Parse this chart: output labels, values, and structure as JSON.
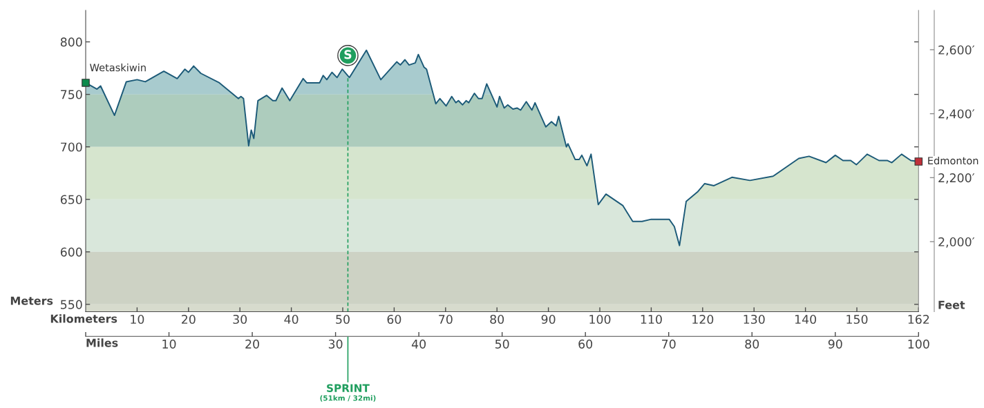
{
  "chart_data": {
    "type": "area",
    "xlabel": "Kilometers",
    "ylabel": "Meters",
    "y2label": "Feet",
    "x2label": "Miles",
    "xlim": [
      0,
      162
    ],
    "xticks": [
      10,
      20,
      30,
      40,
      50,
      60,
      70,
      80,
      90,
      100,
      110,
      120,
      130,
      140,
      150,
      162
    ],
    "ylim": [
      543,
      830
    ],
    "yticks": [
      550,
      600,
      650,
      700,
      750,
      800
    ],
    "y2lim": [
      1781,
      2723
    ],
    "y2ticks": [
      {
        "value": 2000,
        "label": "2,000′"
      },
      {
        "value": 2200,
        "label": "2,200′"
      },
      {
        "value": 2400,
        "label": "2,400′"
      },
      {
        "value": 2600,
        "label": "2,600′"
      }
    ],
    "x2lim": [
      0,
      100
    ],
    "x2ticks": [
      {
        "value": 0,
        "label": null
      },
      10,
      20,
      30,
      40,
      50,
      60,
      70,
      80,
      90,
      100
    ],
    "series": [
      {
        "color": "#1c5a78",
        "x": [
          0,
          2.2,
          2.9,
          5.6,
          7.9,
          10.0,
          11.6,
          15.2,
          17.8,
          19.3,
          20.0,
          21.0,
          22.4,
          26.0,
          29.7,
          30.2,
          30.7,
          31.7,
          32.2,
          32.7,
          33.5,
          35.2,
          36.4,
          37.0,
          38.2,
          39.7,
          42.3,
          43.0,
          45.5,
          46.2,
          46.9,
          47.9,
          48.9,
          49.9,
          51.3,
          54.6,
          57.4,
          60.5,
          61.2,
          62.1,
          62.9,
          64.1,
          64.7,
          65.8,
          66.3,
          68.1,
          68.9,
          70.1,
          71.2,
          72.0,
          72.5,
          73.3,
          74.0,
          74.5,
          75.6,
          76.4,
          77.1,
          78.0,
          80.0,
          80.5,
          81.4,
          82.1,
          83.1,
          83.9,
          84.6,
          85.7,
          86.8,
          87.4,
          89.5,
          90.6,
          91.5,
          92.0,
          93.5,
          93.8,
          95.2,
          96.0,
          96.5,
          97.5,
          98.3,
          99.7,
          101.2,
          104.5,
          106.4,
          108.2,
          110.0,
          113.5,
          114.5,
          115.5,
          116.8,
          119.0,
          120.4,
          122.2,
          125.7,
          129.2,
          133.7,
          138.7,
          140.7,
          144.0,
          145.8,
          147.3,
          148.8,
          149.9,
          152.0,
          154.3,
          155.9,
          156.8,
          158.7,
          160.5,
          162
        ],
        "values": [
          761,
          755,
          758,
          730,
          762,
          764,
          762,
          772,
          765,
          774,
          771,
          777,
          770,
          761,
          746,
          748,
          746,
          701,
          716,
          708,
          744,
          749,
          744,
          744,
          756,
          744,
          765,
          761,
          761,
          768,
          764,
          771,
          766,
          774,
          766,
          792,
          764,
          781,
          778,
          783,
          778,
          780,
          788,
          776,
          774,
          741,
          746,
          739,
          748,
          742,
          744,
          740,
          744,
          742,
          751,
          746,
          746,
          760,
          738,
          748,
          737,
          740,
          736,
          737,
          735,
          743,
          735,
          742,
          719,
          724,
          720,
          729,
          700,
          703,
          688,
          688,
          692,
          682,
          693,
          645,
          655,
          644,
          629,
          629,
          631,
          631,
          624,
          606,
          648,
          657,
          665,
          663,
          671,
          668,
          672,
          689,
          691,
          685,
          692,
          687,
          687,
          683,
          693,
          687,
          687,
          685,
          693,
          687,
          686
        ]
      },
      {
        "type": "scatter",
        "marker": "square",
        "colors": [
          "#0b8a4b",
          "#c0303a"
        ],
        "x": [
          0,
          162
        ],
        "values": [
          761,
          686
        ]
      }
    ],
    "bands": [
      {
        "axis": "y",
        "from": 750,
        "to": 830,
        "color": "#b3d4d6"
      },
      {
        "axis": "y",
        "from": 700,
        "to": 750,
        "color": "#b9d5c3"
      },
      {
        "axis": "y",
        "from": 650,
        "to": 700,
        "color": "#e5f0d6"
      },
      {
        "axis": "y",
        "from": 600,
        "to": 650,
        "color": "#e8f3e4"
      },
      {
        "axis": "y",
        "from": 550,
        "to": 600,
        "color": "#dbdccb"
      },
      {
        "axis": "y",
        "from": 543,
        "to": 550,
        "color": "#e6e6d4"
      }
    ],
    "ref_lines": [
      {
        "axis": "x",
        "value": 51,
        "label": "SPRINT\n(51km / 32mi)",
        "color": "#1f9e5e",
        "line_style": "dashed"
      }
    ],
    "annotations": [
      {
        "text": "Wetaskiwin",
        "x": 0,
        "y": 761
      },
      {
        "text": "Edmonton",
        "x": 162,
        "y": 686
      },
      {
        "text": "S",
        "x": 51,
        "y": 787
      }
    ]
  }
}
